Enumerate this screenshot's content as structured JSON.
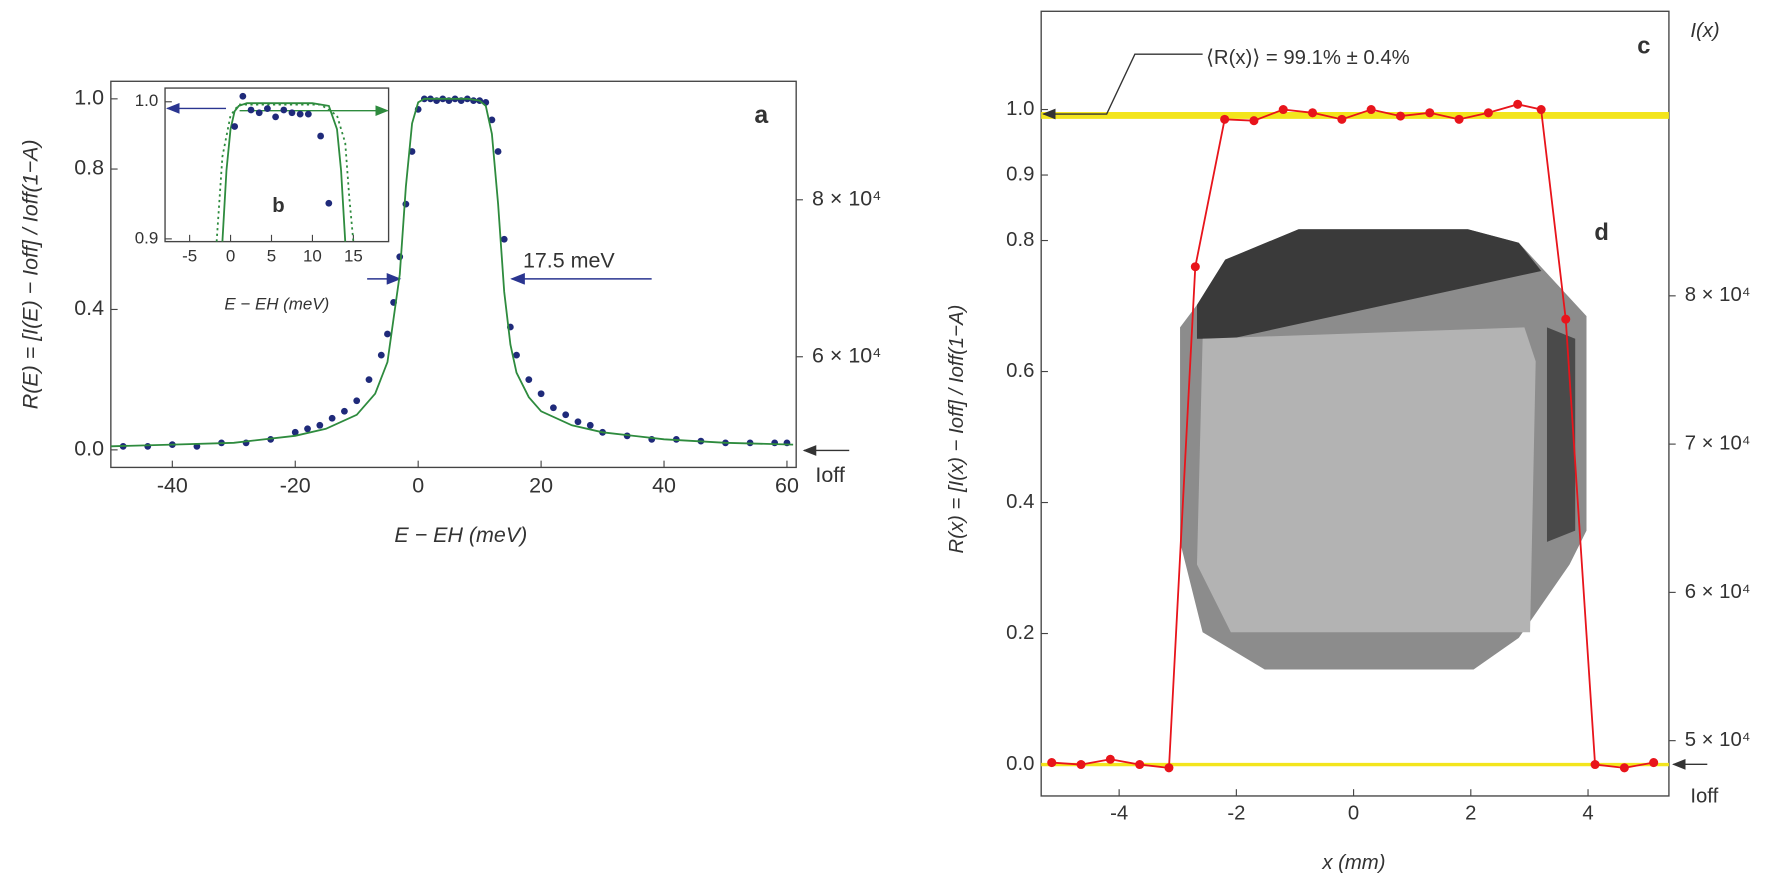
{
  "chart_data": [
    {
      "type": "scatter",
      "panel_label": "a",
      "xlabel": "E − EH (meV)",
      "ylabel": "R(E) = [I(E) − Ioff] / Ioff(1−A)",
      "xlim": [
        -50,
        61.5
      ],
      "xticks": [
        -40,
        -20,
        0,
        20,
        40,
        60
      ],
      "ylim": [
        -0.05,
        1.05
      ],
      "yticks": [
        {
          "value": 0,
          "label": "0.0"
        },
        {
          "value": 0.4,
          "label": "0.4"
        },
        {
          "value": 0.8,
          "label": "0.8"
        },
        {
          "value": 1,
          "label": "1.0"
        }
      ],
      "y2lim": [
        45900,
        95100
      ],
      "y2ticks": [
        {
          "value": 60000,
          "label": "6 × 10⁴"
        },
        {
          "value": 80000,
          "label": "8 × 10⁴"
        }
      ],
      "annotations": [
        "17.5 meV",
        "Ioff"
      ],
      "series": [
        {
          "style": "points",
          "color": "#1f2a7a",
          "x": [
            -48,
            -44,
            -40,
            -36,
            -32,
            -28,
            -24,
            -20,
            -18,
            -16,
            -14,
            -12,
            -10,
            -8,
            -6,
            -5,
            -4,
            -3,
            -2,
            -1,
            0,
            1,
            2,
            3,
            4,
            5,
            6,
            7,
            8,
            9,
            10,
            11,
            12,
            13,
            14,
            15,
            16,
            18,
            20,
            22,
            24,
            26,
            28,
            30,
            34,
            38,
            42,
            46,
            50,
            54,
            58,
            60
          ],
          "values": [
            0.01,
            0.01,
            0.015,
            0.01,
            0.02,
            0.02,
            0.03,
            0.05,
            0.06,
            0.07,
            0.09,
            0.11,
            0.14,
            0.2,
            0.27,
            0.33,
            0.42,
            0.55,
            0.7,
            0.85,
            0.97,
            1.0,
            1.0,
            0.995,
            1.0,
            0.995,
            1.0,
            0.995,
            1.0,
            0.995,
            0.995,
            0.99,
            0.94,
            0.85,
            0.6,
            0.35,
            0.27,
            0.2,
            0.16,
            0.12,
            0.1,
            0.08,
            0.07,
            0.05,
            0.04,
            0.03,
            0.03,
            0.025,
            0.02,
            0.02,
            0.02,
            0.02
          ]
        },
        {
          "style": "line",
          "color": "#2e8b3e",
          "x": [
            -50,
            -40,
            -30,
            -20,
            -15,
            -10,
            -7,
            -5,
            -3,
            -2,
            -1,
            0,
            1,
            2,
            4,
            6,
            8,
            10,
            11,
            12,
            13,
            14,
            15,
            16,
            18,
            20,
            25,
            30,
            40,
            50,
            61
          ],
          "values": [
            0.01,
            0.015,
            0.02,
            0.04,
            0.06,
            0.1,
            0.16,
            0.25,
            0.5,
            0.75,
            0.93,
            0.99,
            1.0,
            1.0,
            1.0,
            1.0,
            1.0,
            0.995,
            0.98,
            0.9,
            0.7,
            0.45,
            0.3,
            0.22,
            0.15,
            0.11,
            0.07,
            0.05,
            0.03,
            0.02,
            0.015
          ]
        }
      ]
    },
    {
      "type": "scatter",
      "panel_label": "b",
      "xlabel": "E − EH (meV)",
      "xlim": [
        -8,
        19.3
      ],
      "xticks": [
        -5,
        0,
        5,
        10,
        15
      ],
      "ylim": [
        0.898,
        1.01
      ],
      "yticks": [
        {
          "value": 0.9,
          "label": "0.9"
        },
        {
          "value": 1,
          "label": "1.0"
        }
      ],
      "series": [
        {
          "style": "line",
          "color": "#2e8b3e",
          "x": [
            -1,
            -0.5,
            0,
            0.5,
            1,
            2,
            10,
            12,
            13,
            13.5,
            14
          ],
          "values": [
            0.898,
            0.95,
            0.98,
            0.993,
            0.997,
            0.999,
            0.999,
            0.997,
            0.98,
            0.95,
            0.898
          ]
        },
        {
          "style": "dotted",
          "color": "#2e8b3e",
          "x": [
            -1.7,
            -1,
            0,
            1,
            11,
            13,
            14,
            14.5,
            15
          ],
          "values": [
            0.898,
            0.96,
            0.99,
            0.998,
            0.998,
            0.99,
            0.97,
            0.93,
            0.898
          ]
        },
        {
          "style": "points",
          "color": "#1f2a7a",
          "x": [
            0.5,
            1.5,
            2.5,
            3.5,
            4.5,
            5.5,
            6.5,
            7.5,
            8.5,
            9.5,
            11,
            12
          ],
          "values": [
            0.982,
            1.004,
            0.994,
            0.992,
            0.995,
            0.989,
            0.994,
            0.992,
            0.991,
            0.991,
            0.975,
            0.926
          ]
        }
      ]
    },
    {
      "type": "scatter",
      "panel_label": "c",
      "inset_label": "d",
      "xlabel": "x (mm)",
      "ylabel": "R(x) = [I(x) − Ioff] / Ioff(1−A)",
      "y2label": "I(x)",
      "xlim": [
        -5.33,
        5.38
      ],
      "xticks": [
        -4,
        -2,
        0,
        2,
        4
      ],
      "ylim": [
        -0.048,
        1.15
      ],
      "yticks": [
        {
          "value": 0,
          "label": "0.0"
        },
        {
          "value": 0.2,
          "label": "0.2"
        },
        {
          "value": 0.4,
          "label": "0.4"
        },
        {
          "value": 0.6,
          "label": "0.6"
        },
        {
          "value": 0.8,
          "label": "0.8"
        },
        {
          "value": 0.9,
          "label": "0.9"
        },
        {
          "value": 1,
          "label": "1.0"
        }
      ],
      "y2lim": [
        46270,
        99190
      ],
      "y2ticks": [
        {
          "value": 50000,
          "label": "5 × 10⁴"
        },
        {
          "value": 60000,
          "label": "6 × 10⁴"
        },
        {
          "value": 70000,
          "label": "7 × 10⁴"
        },
        {
          "value": 80000,
          "label": "8 × 10⁴"
        }
      ],
      "annotations": [
        "⟨R(x)⟩ = 99.1% ± 0.4%",
        "Ioff"
      ],
      "reference_lines": [
        {
          "value": 0.991,
          "color": "#f3e51c"
        },
        {
          "value": 0,
          "color": "#f3e51c"
        }
      ],
      "series": [
        {
          "style": "points+line",
          "color": "#e8141b",
          "x": [
            -5.15,
            -4.65,
            -4.15,
            -3.65,
            -3.15,
            -2.7,
            -2.2,
            -1.7,
            -1.2,
            -0.7,
            -0.2,
            0.3,
            0.8,
            1.3,
            1.8,
            2.3,
            2.8,
            3.2,
            3.62,
            4.12,
            4.62,
            5.12
          ],
          "values": [
            0.003,
            0.0,
            0.008,
            0.0,
            -0.005,
            0.76,
            0.985,
            0.983,
            1.0,
            0.995,
            0.985,
            1.0,
            0.99,
            0.995,
            0.985,
            0.995,
            1.008,
            1.0,
            0.68,
            0.0,
            -0.005,
            0.003
          ]
        }
      ]
    }
  ]
}
